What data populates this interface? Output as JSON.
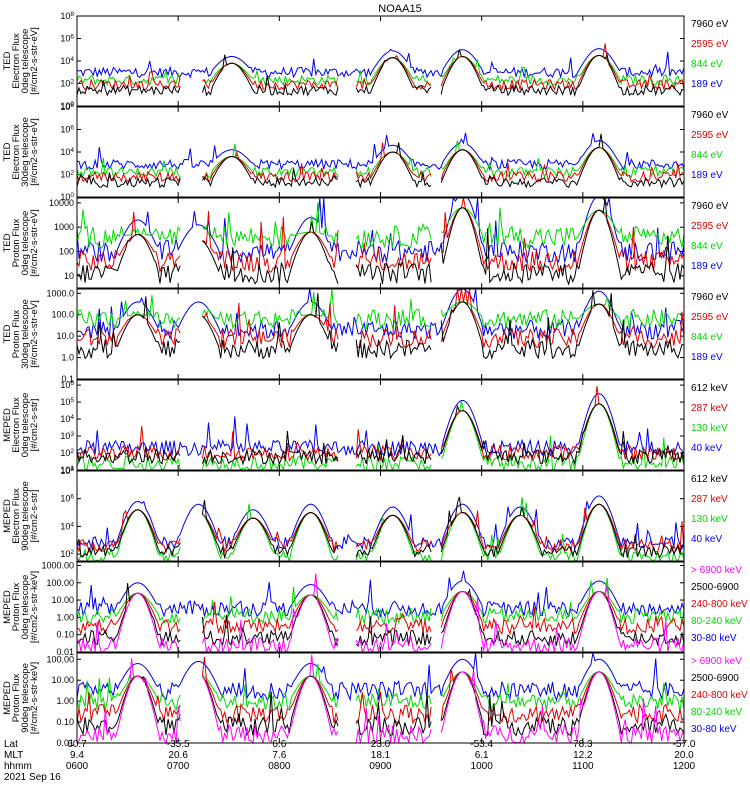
{
  "title": "NOAA15",
  "x_axis": {
    "row_labels": [
      "Lat",
      "MLT",
      "hhmm"
    ],
    "date": "2021 Sep 16",
    "time_range": [
      "0600",
      "1200"
    ],
    "columns": [
      {
        "lat": "60.7",
        "mlt": "9.4",
        "hhmm": "0600"
      },
      {
        "lat": "-35.5",
        "mlt": "20.6",
        "hhmm": "0700"
      },
      {
        "lat": "6.6",
        "mlt": "7.6",
        "hhmm": "0800"
      },
      {
        "lat": "23.0",
        "mlt": "18.1",
        "hhmm": "0900"
      },
      {
        "lat": "-53.4",
        "mlt": "6.1",
        "hhmm": "1000"
      },
      {
        "lat": "78.3",
        "mlt": "12.2",
        "hhmm": "1100"
      },
      {
        "lat": "-57.0",
        "mlt": "20.0",
        "hhmm": "1200"
      }
    ]
  },
  "colors": {
    "black": "#000000",
    "red": "#e00000",
    "green": "#00d800",
    "blue": "#0000e8",
    "magenta": "#ff00ff"
  },
  "chart_data": [
    {
      "type": "line",
      "scale": "log",
      "ylabel_lines": [
        "TED",
        "Electron Flux",
        "0deg telescope",
        "[#/cm2-s-str-eV]"
      ],
      "yticks": [
        "10^0",
        "10^2",
        "10^4",
        "10^6",
        "10^8"
      ],
      "ylim": [
        0,
        8
      ],
      "series": [
        {
          "name": "7960 eV",
          "color": "black",
          "baseline": 1.4
        },
        {
          "name": "2595 eV",
          "color": "red",
          "baseline": 1.9
        },
        {
          "name": "844 eV",
          "color": "green",
          "baseline": 2.3
        },
        {
          "name": "189 eV",
          "color": "blue",
          "baseline": 3.0
        }
      ],
      "peaks": [
        0.255,
        0.52,
        0.635,
        0.86
      ],
      "peak_levels": [
        3.8,
        4.3,
        4.4,
        4.5
      ]
    },
    {
      "type": "line",
      "scale": "log",
      "ylabel_lines": [
        "TED",
        "Electron Flux",
        "30deg telescope",
        "[#/cm2-s-str-eV]"
      ],
      "yticks": [
        "10^0",
        "10^2",
        "10^4",
        "10^6",
        "10^8"
      ],
      "ylim": [
        0,
        8
      ],
      "series": [
        {
          "name": "7960 eV",
          "color": "black",
          "baseline": 1.3
        },
        {
          "name": "2595 eV",
          "color": "red",
          "baseline": 1.8
        },
        {
          "name": "844 eV",
          "color": "green",
          "baseline": 2.2
        },
        {
          "name": "189 eV",
          "color": "blue",
          "baseline": 2.9
        }
      ],
      "peaks": [
        0.255,
        0.52,
        0.635,
        0.86
      ],
      "peak_levels": [
        3.6,
        4.0,
        4.2,
        4.4
      ]
    },
    {
      "type": "line",
      "scale": "log",
      "ylabel_lines": [
        "TED",
        "Proton Flux",
        "0deg telescope",
        "[#/cm2-s-str-eV]"
      ],
      "yticks": [
        "10",
        "100",
        "1000",
        "10000"
      ],
      "ylim": [
        0.5,
        4.2
      ],
      "series": [
        {
          "name": "7960 eV",
          "color": "black",
          "baseline": 1.1
        },
        {
          "name": "2595 eV",
          "color": "red",
          "baseline": 1.6
        },
        {
          "name": "844 eV",
          "color": "green",
          "baseline": 2.6
        },
        {
          "name": "189 eV",
          "color": "blue",
          "baseline": 2.0
        }
      ],
      "peaks": [
        0.1,
        0.2,
        0.385,
        0.635,
        0.86
      ],
      "peak_levels": [
        2.7,
        2.5,
        2.8,
        3.8,
        3.7
      ]
    },
    {
      "type": "line",
      "scale": "log",
      "ylabel_lines": [
        "TED",
        "Proton Flux",
        "30deg telescope",
        "[#/cm2-s-str-eV]"
      ],
      "yticks": [
        "0.1",
        "1.0",
        "10.0",
        "100.0",
        "1000.0"
      ],
      "ylim": [
        -1,
        3.2
      ],
      "series": [
        {
          "name": "7960 eV",
          "color": "black",
          "baseline": 0.4
        },
        {
          "name": "2595 eV",
          "color": "red",
          "baseline": 0.9
        },
        {
          "name": "844 eV",
          "color": "green",
          "baseline": 1.8
        },
        {
          "name": "189 eV",
          "color": "blue",
          "baseline": 1.3
        }
      ],
      "peaks": [
        0.1,
        0.2,
        0.385,
        0.635,
        0.86
      ],
      "peak_levels": [
        2.0,
        2.0,
        2.0,
        2.6,
        2.5
      ]
    },
    {
      "type": "line",
      "scale": "log",
      "ylabel_lines": [
        "MEPED",
        "Electron Flux",
        "0deg telescope",
        "[#/cm2-s-str]"
      ],
      "yticks": [
        "10^1",
        "10^2",
        "10^3",
        "10^4",
        "10^5",
        "10^6"
      ],
      "ylim": [
        1,
        6.3
      ],
      "series": [
        {
          "name": "612 keV",
          "color": "black",
          "baseline": 1.8
        },
        {
          "name": "287 keV",
          "color": "red",
          "baseline": 2.0
        },
        {
          "name": "130 keV",
          "color": "green",
          "baseline": 1.4
        },
        {
          "name": "40 keV",
          "color": "blue",
          "baseline": 2.3
        }
      ],
      "peaks": [
        0.635,
        0.86
      ],
      "peak_levels": [
        4.5,
        4.9
      ]
    },
    {
      "type": "line",
      "scale": "log",
      "ylabel_lines": [
        "MEPED",
        "Electron Flux",
        "90deg telescope",
        "[#/cm2-s-str]"
      ],
      "yticks": [
        "10^2",
        "10^4",
        "10^6",
        "10^8"
      ],
      "ylim": [
        1.5,
        8
      ],
      "series": [
        {
          "name": "612 keV",
          "color": "black",
          "baseline": 2.2
        },
        {
          "name": "287 keV",
          "color": "red",
          "baseline": 2.6
        },
        {
          "name": "130 keV",
          "color": "green",
          "baseline": 1.8
        },
        {
          "name": "40 keV",
          "color": "blue",
          "baseline": 2.8
        }
      ],
      "peaks": [
        0.1,
        0.2,
        0.29,
        0.385,
        0.52,
        0.635,
        0.73,
        0.86
      ],
      "peak_levels": [
        5.2,
        5.0,
        4.6,
        5.0,
        4.8,
        5.0,
        4.8,
        5.6
      ]
    },
    {
      "type": "line",
      "scale": "log",
      "ylabel_lines": [
        "MEPED",
        "Proton Flux",
        "0deg telescope",
        "[#/cm2-s-str-keV]"
      ],
      "yticks": [
        "0.01",
        "0.10",
        "1.00",
        "10.00",
        "100.00",
        "1000.00"
      ],
      "ylim": [
        -2,
        3.2
      ],
      "series": [
        {
          "name": "> 6900 keV",
          "color": "magenta",
          "baseline": -1.6
        },
        {
          "name": "2500-6900",
          "color": "black",
          "baseline": -1.2
        },
        {
          "name": "240-800 keV",
          "color": "red",
          "baseline": -0.5
        },
        {
          "name": "80-240 keV",
          "color": "green",
          "baseline": 0.1
        },
        {
          "name": "30-80 keV",
          "color": "blue",
          "baseline": 0.5
        }
      ],
      "peaks": [
        0.1,
        0.385,
        0.635,
        0.86
      ],
      "peak_levels": [
        1.4,
        1.3,
        1.5,
        1.5
      ]
    },
    {
      "type": "line",
      "scale": "log",
      "ylabel_lines": [
        "MEPED",
        "Proton Flux",
        "90deg telescope",
        "[#/cm2-s-str-keV]"
      ],
      "yticks": [
        "0.01",
        "0.10",
        "1.00",
        "10.00",
        "100.00"
      ],
      "ylim": [
        -2,
        2.3
      ],
      "series": [
        {
          "name": "> 6900 keV",
          "color": "magenta",
          "baseline": -1.6
        },
        {
          "name": "2500-6900",
          "color": "black",
          "baseline": -1.2
        },
        {
          "name": "240-800 keV",
          "color": "red",
          "baseline": -0.6
        },
        {
          "name": "80-240 keV",
          "color": "green",
          "baseline": 0.0
        },
        {
          "name": "30-80 keV",
          "color": "blue",
          "baseline": 0.5
        }
      ],
      "peaks": [
        0.1,
        0.2,
        0.385,
        0.635,
        0.86
      ],
      "peak_levels": [
        1.2,
        1.3,
        1.2,
        1.4,
        1.4
      ]
    }
  ]
}
